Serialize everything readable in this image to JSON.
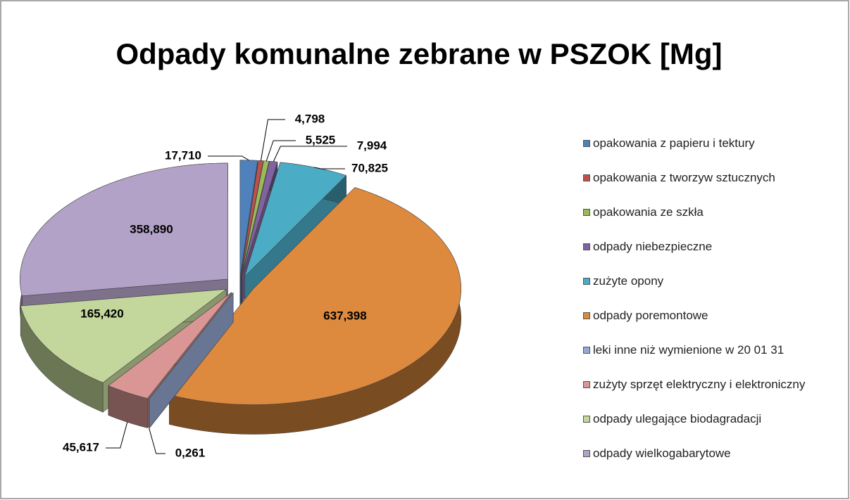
{
  "chart_data": {
    "type": "pie3d",
    "title": "Odpady komunalne zebrane w PSZOK [Mg]",
    "categories": [
      "opakowania z papieru i tektury",
      "opakowania z tworzyw sztucznych",
      "opakowania ze szkła",
      "odpady niebezpieczne",
      "zużyte opony",
      "odpady poremontowe",
      "leki inne niż wymienione w 20 01 31",
      "zużyty sprzęt elektryczny i elektroniczny",
      "odpady ulegające biodagradacji",
      "odpady wielkogabarytowe"
    ],
    "values": [
      17.71,
      4.798,
      5.525,
      7.994,
      70.825,
      637.398,
      0.261,
      45.617,
      165.42,
      358.89
    ],
    "value_labels": [
      "17,710",
      "4,798",
      "5,525",
      "7,994",
      "70,825",
      "637,398",
      "0,261",
      "45,617",
      "165,420",
      "358,890"
    ],
    "colors": [
      "#4f81bd",
      "#c0504d",
      "#9bbb59",
      "#8064a2",
      "#4bacc6",
      "#dd8a3e",
      "#95a9d4",
      "#d99694",
      "#c3d69b",
      "#b3a2c7"
    ],
    "legend": "right"
  }
}
